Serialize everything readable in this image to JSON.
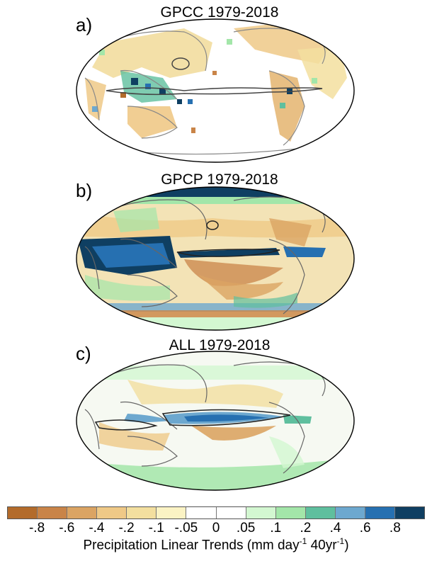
{
  "panels": [
    {
      "label": "a)",
      "title": "GPCC 1979-2018"
    },
    {
      "label": "b)",
      "title": "GPCP 1979-2018"
    },
    {
      "label": "c)",
      "title": "ALL 1979-2018"
    }
  ],
  "colorbar": {
    "colors": [
      "#b36b2b",
      "#c98448",
      "#dba463",
      "#efc987",
      "#f3df9f",
      "#fbf3c4",
      "#ffffff",
      "#ffffff",
      "#d3f7d1",
      "#a3e6a9",
      "#5fbf9e",
      "#6da8cf",
      "#2670b1",
      "#0f3f62"
    ],
    "tick_labels": [
      "-.8",
      "-.6",
      "-.4",
      "-.2",
      "-.1",
      "-.05",
      "0",
      ".05",
      ".1",
      ".2",
      ".4",
      ".6",
      ".8"
    ],
    "title_prefix": "Precipitation Linear Trends (mm day",
    "title_sup1": "-1",
    "title_middle": " 40yr",
    "title_sup2": "-1",
    "title_suffix": ")"
  }
}
